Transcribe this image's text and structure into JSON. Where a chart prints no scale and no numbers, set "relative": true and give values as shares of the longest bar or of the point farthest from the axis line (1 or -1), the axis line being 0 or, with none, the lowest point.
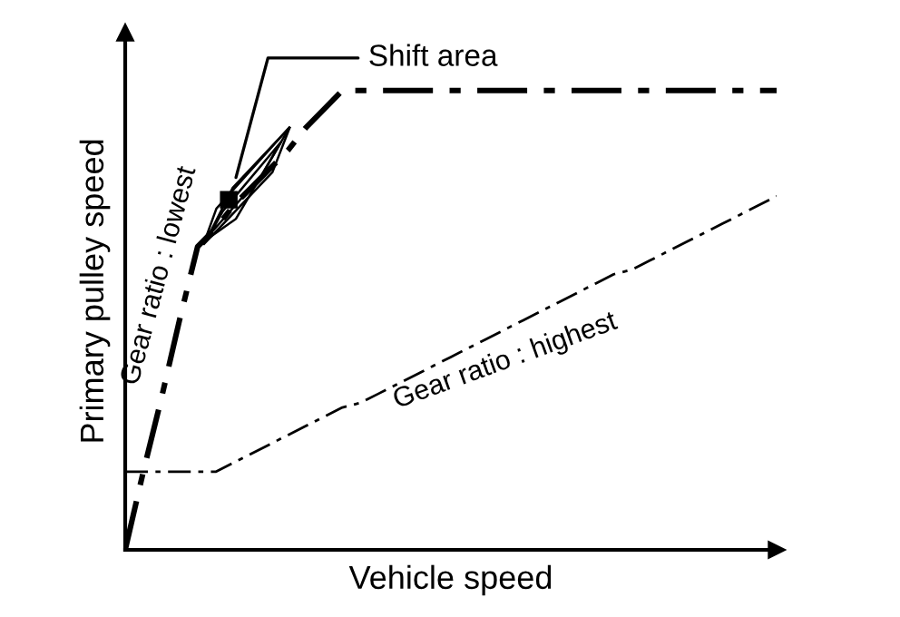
{
  "chart_data": {
    "type": "line",
    "relative": true,
    "xlabel": "Vehicle speed",
    "ylabel": "Primary pulley speed",
    "annotations": [
      "Shift area"
    ],
    "categories": [
      null,
      null,
      null,
      null,
      null,
      null,
      null,
      null,
      null,
      null,
      null,
      null,
      null,
      null,
      null,
      null,
      null,
      null,
      null,
      null,
      null,
      null,
      null,
      null,
      null,
      null,
      null,
      null,
      null,
      null,
      null,
      null,
      null,
      null,
      null,
      null,
      null
    ],
    "line_style": "dashed",
    "marker": "none",
    "legend": false,
    "series": [
      {
        "name": "Gear ratio : lowest",
        "color": "#000000",
        "values": [
          0,
          0.17,
          0.33,
          0.5,
          0.66,
          0.7,
          0.75,
          0.79,
          0.83,
          0.87,
          0.92,
          0.96,
          1,
          1,
          1,
          1,
          1,
          1,
          1,
          1,
          1,
          1,
          1,
          1,
          1,
          1,
          1,
          1,
          1,
          1,
          1,
          1,
          1,
          1,
          1,
          1,
          1
        ]
      },
      {
        "name": "Gear ratio : highest",
        "color": "#000000",
        "values": [
          0.17,
          0.17,
          0.17,
          0.17,
          0.17,
          0.17,
          0.19,
          0.21,
          0.23,
          0.25,
          0.27,
          0.29,
          0.31,
          0.32,
          0.34,
          0.36,
          0.38,
          0.4,
          0.42,
          0.44,
          0.46,
          0.48,
          0.5,
          0.52,
          0.54,
          0.56,
          0.58,
          0.6,
          0.61,
          0.63,
          0.65,
          0.67,
          0.69,
          0.71,
          0.73,
          0.75,
          0.77
        ]
      }
    ]
  }
}
